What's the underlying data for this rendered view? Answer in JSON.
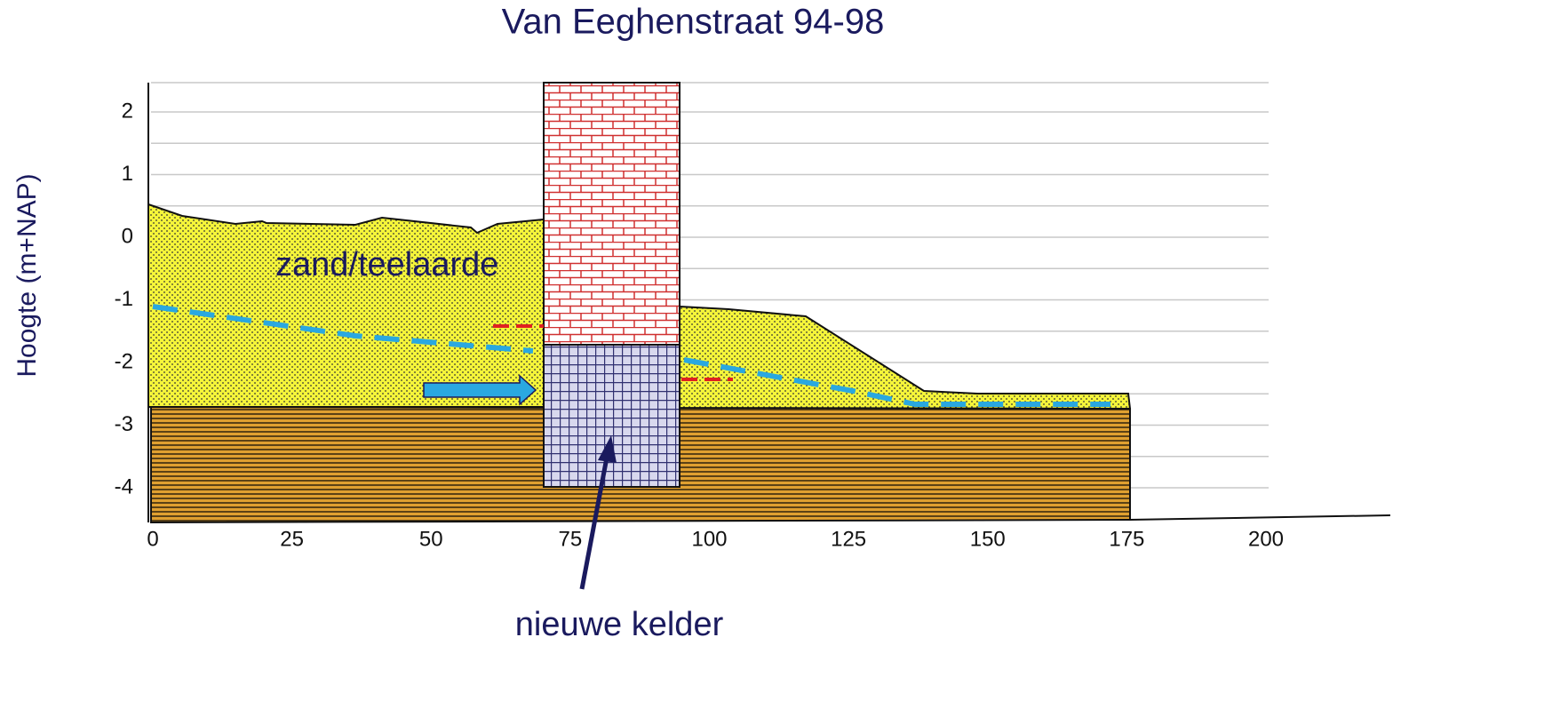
{
  "title": "Van Eeghenstraat 94-98",
  "y_axis_label": "Hoogte (m+NAP)",
  "yticks": [
    2,
    1,
    0,
    -1,
    -2,
    -3,
    -4
  ],
  "xticks": [
    0,
    25,
    50,
    75,
    100,
    125,
    150,
    175,
    200
  ],
  "annotations": {
    "layer": "zand/teelaarde",
    "cellar": "nieuwe kelder"
  }
}
